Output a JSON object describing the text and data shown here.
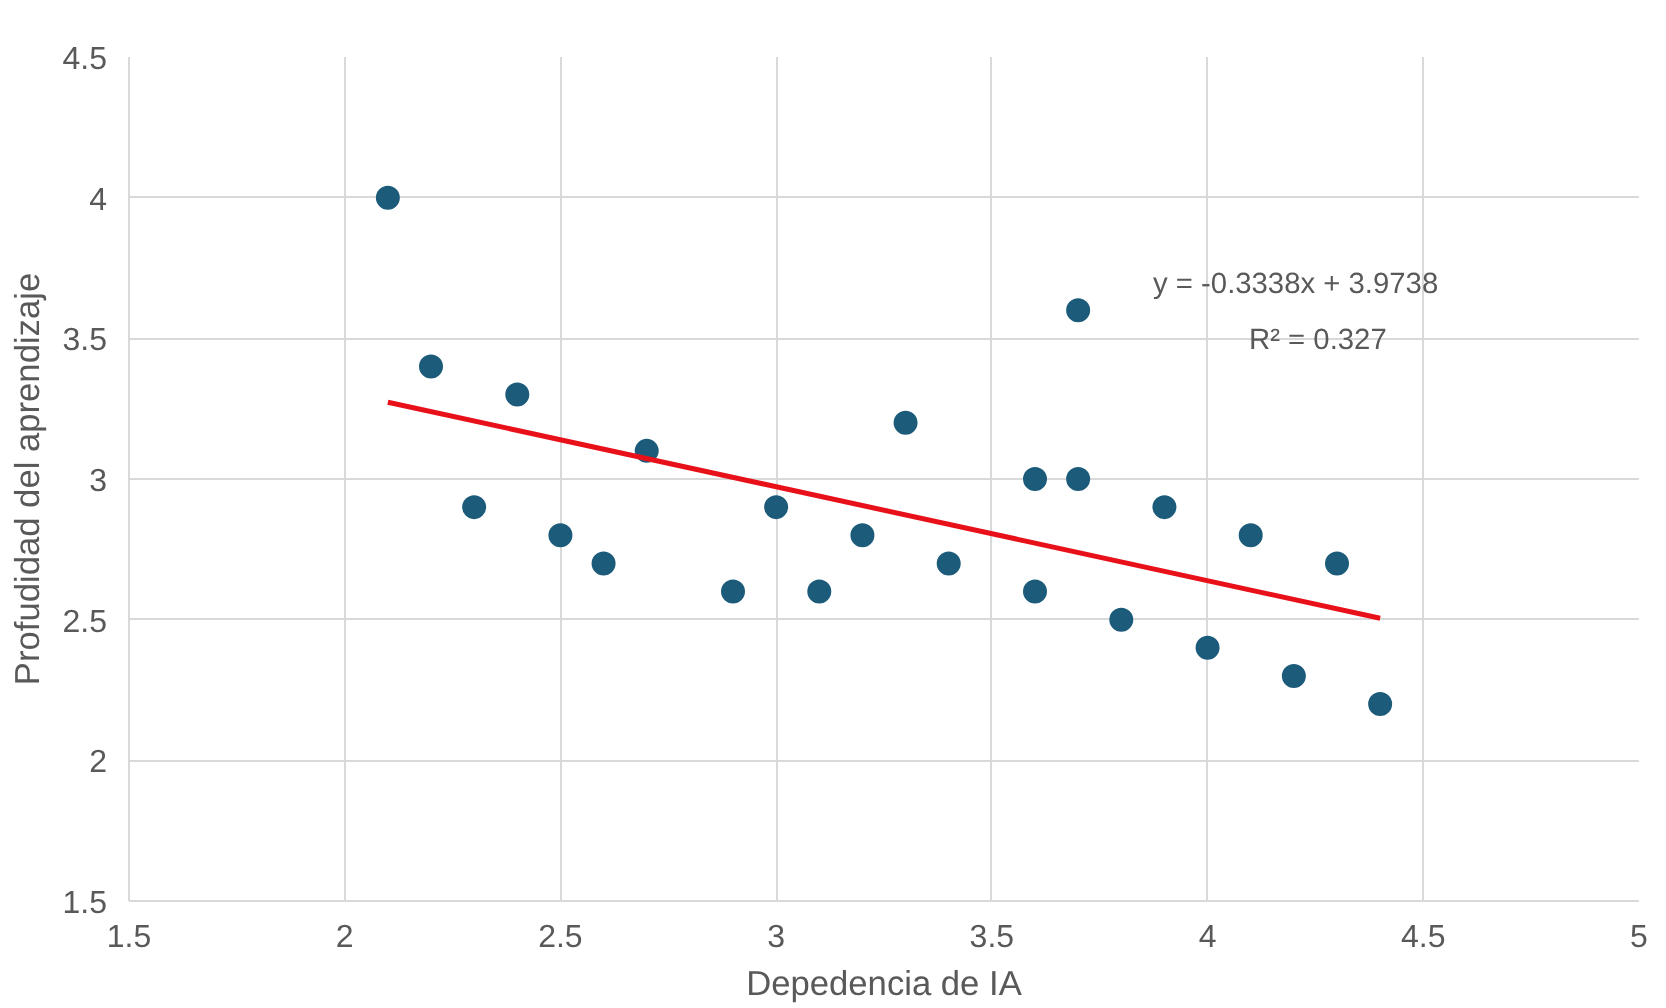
{
  "chart_data": {
    "type": "scatter",
    "xlabel": "Depedencia de IA",
    "ylabel": "Profudidad del aprendizaje",
    "xlim": [
      1.5,
      5
    ],
    "ylim": [
      1.5,
      4.5
    ],
    "xticks": [
      1.5,
      2,
      2.5,
      3,
      3.5,
      4,
      4.5,
      5
    ],
    "yticks": [
      1.5,
      2,
      2.5,
      3,
      3.5,
      4,
      4.5
    ],
    "grid": true,
    "annotations": [
      "y = -0.3338x + 3.9738",
      "R² = 0.327"
    ],
    "series": [
      {
        "color": "#1c5b7a",
        "marker": "circle",
        "x": [
          2.1,
          2.2,
          2.3,
          2.4,
          2.5,
          2.6,
          2.7,
          2.9,
          3.0,
          3.1,
          3.2,
          3.3,
          3.4,
          3.6,
          3.6,
          3.7,
          3.7,
          3.8,
          3.9,
          4.0,
          4.1,
          4.2,
          4.3,
          4.4
        ],
        "values": [
          4.0,
          3.4,
          2.9,
          3.3,
          2.8,
          2.7,
          3.1,
          2.6,
          2.9,
          2.6,
          2.8,
          3.2,
          2.7,
          3.0,
          2.6,
          3.6,
          3.0,
          2.5,
          2.9,
          2.4,
          2.8,
          2.3,
          2.7,
          2.2
        ]
      },
      {
        "type": "line",
        "marker": "none",
        "color": "#e8111a",
        "x": [
          2.1,
          4.4
        ],
        "values": [
          3.273,
          2.505
        ]
      }
    ]
  }
}
